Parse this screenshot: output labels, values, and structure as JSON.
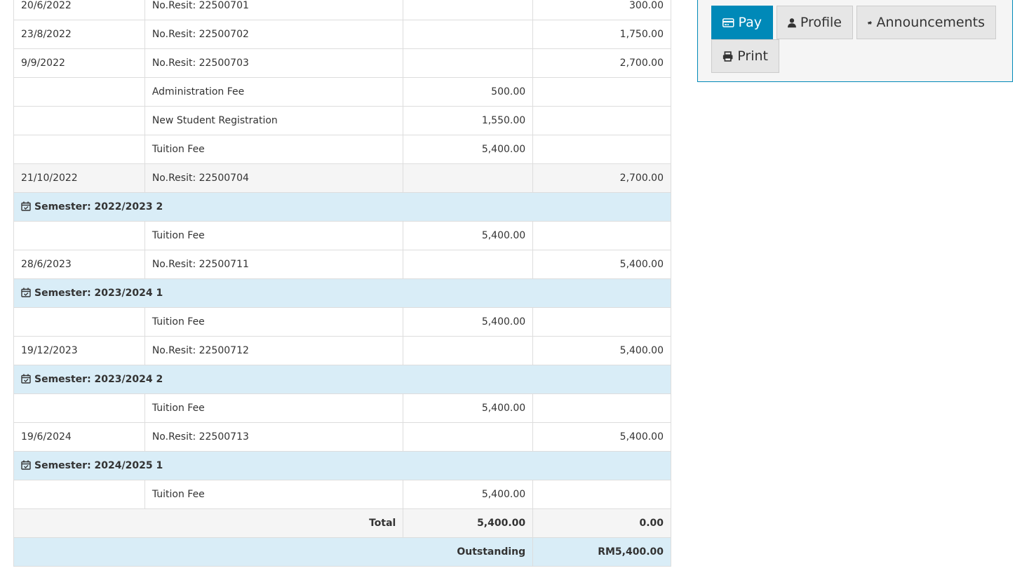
{
  "ledger": {
    "rows": [
      {
        "type": "normal",
        "date": "20/6/2022",
        "desc": "No.Resit: 22500701",
        "debit": "",
        "credit": "300.00"
      },
      {
        "type": "normal",
        "date": "23/8/2022",
        "desc": "No.Resit: 22500702",
        "debit": "",
        "credit": "1,750.00"
      },
      {
        "type": "normal",
        "date": "9/9/2022",
        "desc": "No.Resit: 22500703",
        "debit": "",
        "credit": "2,700.00"
      },
      {
        "type": "normal",
        "date": "",
        "desc": "Administration Fee",
        "debit": "500.00",
        "credit": ""
      },
      {
        "type": "normal",
        "date": "",
        "desc": "New Student Registration",
        "debit": "1,550.00",
        "credit": ""
      },
      {
        "type": "normal",
        "date": "",
        "desc": "Tuition Fee",
        "debit": "5,400.00",
        "credit": ""
      },
      {
        "type": "grey",
        "date": "21/10/2022",
        "desc": "No.Resit: 22500704",
        "debit": "",
        "credit": "2,700.00"
      },
      {
        "type": "sem",
        "label": "Semester: 2022/2023 2"
      },
      {
        "type": "normal",
        "date": "",
        "desc": "Tuition Fee",
        "debit": "5,400.00",
        "credit": ""
      },
      {
        "type": "normal",
        "date": "28/6/2023",
        "desc": "No.Resit: 22500711",
        "debit": "",
        "credit": "5,400.00"
      },
      {
        "type": "sem",
        "label": "Semester: 2023/2024 1"
      },
      {
        "type": "normal",
        "date": "",
        "desc": "Tuition Fee",
        "debit": "5,400.00",
        "credit": ""
      },
      {
        "type": "normal",
        "date": "19/12/2023",
        "desc": "No.Resit: 22500712",
        "debit": "",
        "credit": "5,400.00"
      },
      {
        "type": "sem",
        "label": "Semester: 2023/2024 2"
      },
      {
        "type": "normal",
        "date": "",
        "desc": "Tuition Fee",
        "debit": "5,400.00",
        "credit": ""
      },
      {
        "type": "normal",
        "date": "19/6/2024",
        "desc": "No.Resit: 22500713",
        "debit": "",
        "credit": "5,400.00"
      },
      {
        "type": "sem",
        "label": "Semester: 2024/2025 1"
      },
      {
        "type": "normal",
        "date": "",
        "desc": "Tuition Fee",
        "debit": "5,400.00",
        "credit": ""
      }
    ],
    "total": {
      "label": "Total",
      "debit": "5,400.00",
      "credit": "0.00"
    },
    "outstanding": {
      "label": "Outstanding",
      "value": "RM5,400.00"
    }
  },
  "actions": {
    "pay": "Pay",
    "profile": "Profile",
    "announcements": "Announcements",
    "print": "Print"
  },
  "colors": {
    "accent": "#0089b8",
    "semester_row": "#d9edf7",
    "muted_row": "#f5f5f5"
  }
}
